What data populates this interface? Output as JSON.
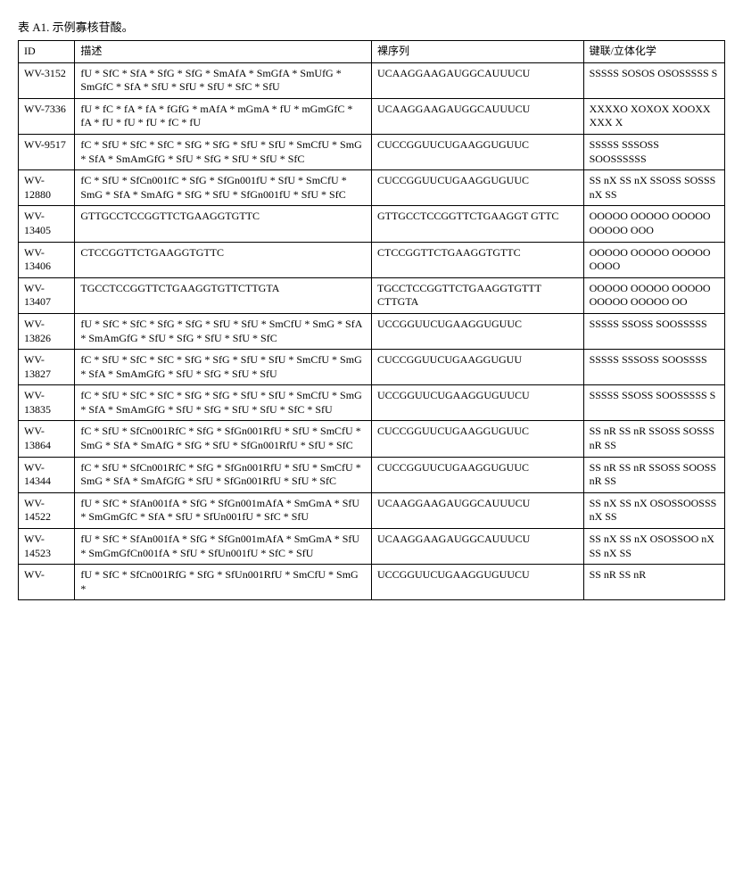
{
  "title": "表 A1. 示例寡核苷酸。",
  "columns": [
    "ID",
    "描述",
    "裸序列",
    "键联/立体化学"
  ],
  "rows": [
    {
      "id": "WV-3152",
      "desc": "fU * SfC * SfA * SfG * SfG * SmAfA * SmGfA * SmUfG * SmGfC * SfA * SfU * SfU * SfU * SfC * SfU",
      "seq": "UCAAGGAAGAUGGCAUUUCU",
      "key": "SSSSS SOSOS OSOSSSSS S"
    },
    {
      "id": "WV-7336",
      "desc": "fU * fC * fA * fA * fGfG * mAfA * mGmA * fU * mGmGfC * fA * fU * fU * fU * fC * fU",
      "seq": "UCAAGGAAGAUGGCAUUUCU",
      "key": "XXXXO XOXOX XOOXX XXX X"
    },
    {
      "id": "WV-9517",
      "desc": "fC * SfU * SfC * SfC * SfG * SfG * SfU * SfU * SmCfU * SmG * SfA * SmAmGfG * SfU * SfG * SfU * SfU * SfC",
      "seq": "CUCCGGUUCUGAAGGUGUUC",
      "key": "SSSSS SSSOSS SOOSSSSSS"
    },
    {
      "id": "WV-12880",
      "desc": "fC * SfU * SfCn001fC * SfG * SfGn001fU * SfU * SmCfU * SmG * SfA * SmAfG * SfG * SfU * SfGn001fU * SfU * SfC",
      "seq": "CUCCGGUUCUGAAGGUGUUC",
      "key": "SS nX SS nX SSOSS SOSSS nX SS"
    },
    {
      "id": "WV-13405",
      "desc": "GTTGCCTCCGGTTCTGAAGGTGTTC",
      "seq": "GTTGCCTCCGGTTCTGAAGGT GTTC",
      "key": "OOOOO OOOOO OOOOO OOOOO OOO"
    },
    {
      "id": "WV-13406",
      "desc": "CTCCGGTTCTGAAGGTGTTC",
      "seq": "CTCCGGTTCTGAAGGTGTTC",
      "key": "OOOOO OOOOO OOOOO OOOO"
    },
    {
      "id": "WV-13407",
      "desc": "TGCCTCCGGTTCTGAAGGTGTTCTTGTA",
      "seq": "TGCCTCCGGTTCTGAAGGTGTTT CTTGTA",
      "key": "OOOOO OOOOO OOOOO OOOOO OOOOO OO"
    },
    {
      "id": "WV-13826",
      "desc": "fU * SfC * SfC * SfG * SfG * SfU * SfU * SmCfU * SmG * SfA * SmAmGfG * SfU * SfG * SfU * SfU * SfC",
      "seq": "UCCGGUUCUGAAGGUGUUC",
      "key": "SSSSS SSOSS SOOSSSSS"
    },
    {
      "id": "WV-13827",
      "desc": "fC * SfU * SfC * SfC * SfG * SfG * SfU * SfU * SmCfU * SmG * SfA * SmAmGfG * SfU * SfG * SfU * SfU",
      "seq": "CUCCGGUUCUGAAGGUGUU",
      "key": "SSSSS SSSOSS SOOSSSS"
    },
    {
      "id": "WV-13835",
      "desc": "fC * SfU * SfC * SfC * SfG * SfG * SfU * SfU * SmCfU * SmG * SfA * SmAmGfG * SfU * SfG * SfU * SfU * SfC * SfU",
      "seq": "UCCGGUUCUGAAGGUGUUCU",
      "key": "SSSSS SSOSS SOOSSSSS S"
    },
    {
      "id": "WV-13864",
      "desc": "fC * SfU * SfCn001RfC * SfG * SfGn001RfU * SfU * SmCfU * SmG * SfA * SmAfG * SfG * SfU * SfGn001RfU * SfU * SfC",
      "seq": "CUCCGGUUCUGAAGGUGUUC",
      "key": "SS nR SS nR SSOSS SOSSS nR SS"
    },
    {
      "id": "WV-14344",
      "desc": "fC * SfU * SfCn001RfC * SfG * SfGn001RfU * SfU * SmCfU * SmG * SfA * SmAfGfG * SfU * SfGn001RfU * SfU * SfC",
      "seq": "CUCCGGUUCUGAAGGUGUUC",
      "key": "SS nR SS nR SSOSS SOOSS nR SS"
    },
    {
      "id": "WV-14522",
      "desc": "fU * SfC * SfAn001fA * SfG * SfGn001mAfA * SmGmA * SfU * SmGmGfC * SfA * SfU * SfUn001fU * SfC * SfU",
      "seq": "UCAAGGAAGAUGGCAUUUCU",
      "key": "SS nX SS nX OSOSSOOSSS nX SS"
    },
    {
      "id": "WV-14523",
      "desc": "fU * SfC * SfAn001fA * SfG * SfGn001mAfA * SmGmA * SfU * SmGmGfCn001fA * SfU * SfUn001fU * SfC * SfU",
      "seq": "UCAAGGAAGAUGGCAUUUCU",
      "key": "SS nX SS nX OSOSSOO nX SS nX SS"
    },
    {
      "id": "WV-",
      "desc": "fU * SfC * SfCn001RfG * SfG * SfUn001RfU * SmCfU * SmG *",
      "seq": "UCCGGUUCUGAAGGUGUUCU",
      "key": "SS nR SS nR"
    }
  ]
}
